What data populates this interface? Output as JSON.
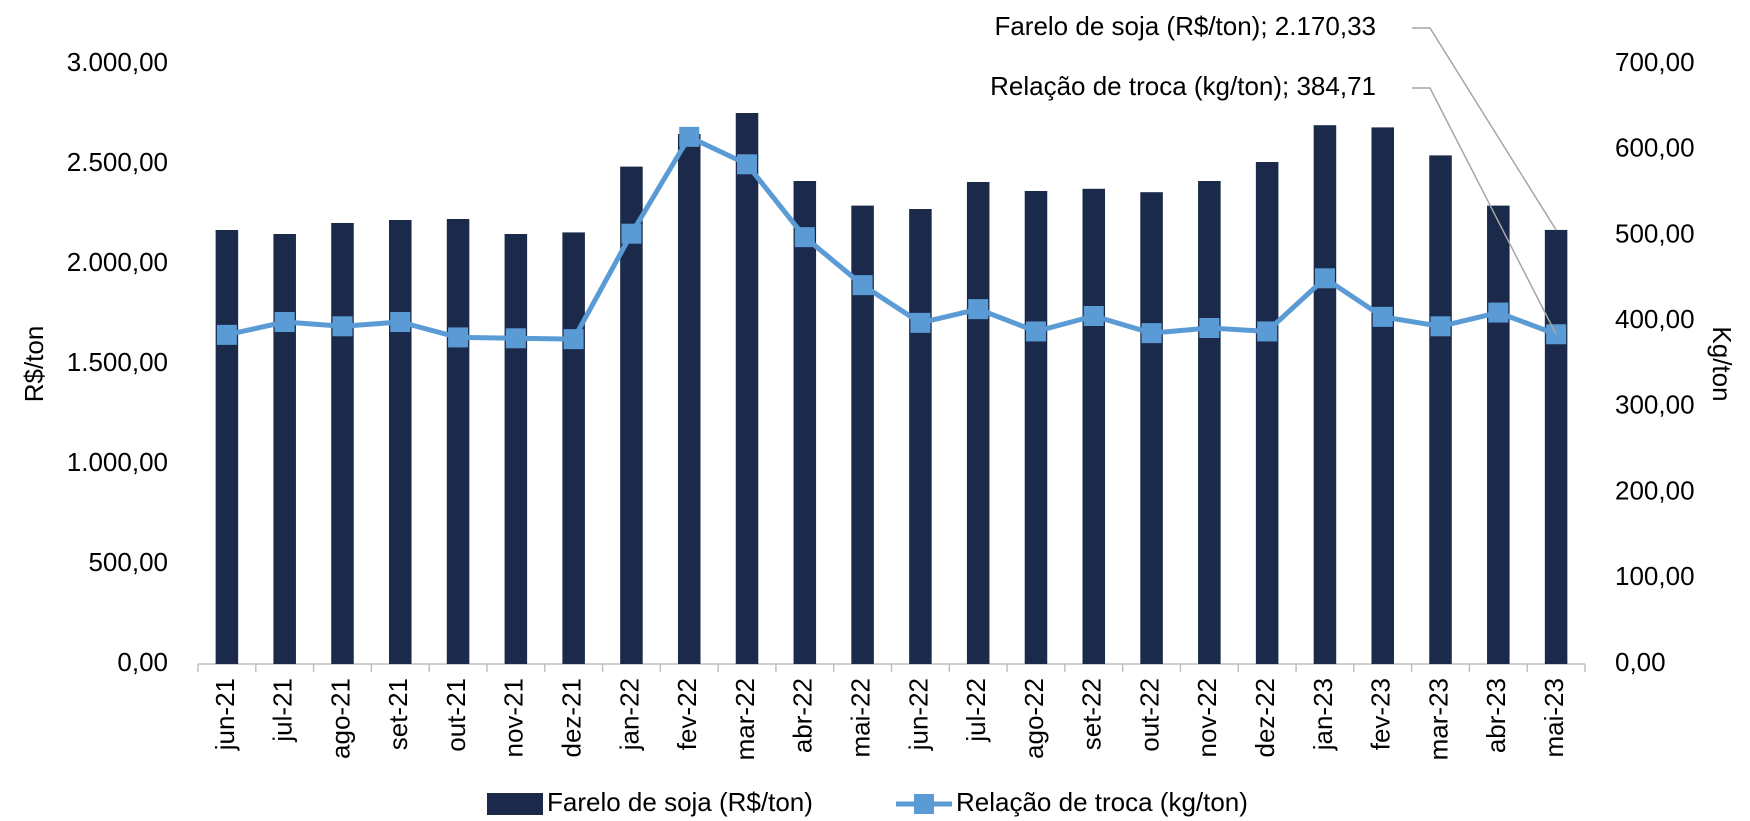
{
  "chart_data": {
    "type": "bar-line",
    "categories": [
      "jun-21",
      "jul-21",
      "ago-21",
      "set-21",
      "out-21",
      "nov-21",
      "dez-21",
      "jan-22",
      "fev-22",
      "mar-22",
      "abr-22",
      "mai-22",
      "jun-22",
      "jul-22",
      "ago-22",
      "set-22",
      "out-22",
      "nov-22",
      "dez-22",
      "jan-23",
      "fev-23",
      "mar-23",
      "abr-23",
      "mai-23"
    ],
    "series": [
      {
        "name": "Farelo de soja (R$/ton)",
        "color": "#1b2a4a",
        "type": "bar",
        "values": [
          2170,
          2150,
          2205,
          2220,
          2225,
          2150,
          2158,
          2487,
          2650,
          2755,
          2415,
          2292,
          2275,
          2410,
          2365,
          2376,
          2359,
          2415,
          2510,
          2694,
          2683,
          2543,
          2292,
          2170.33
        ]
      },
      {
        "name": "Relação de troca (kg/ton)",
        "color": "#5b9bd5",
        "type": "line",
        "axis": "y2",
        "values": [
          384,
          399,
          394,
          399,
          381,
          380,
          379,
          502,
          615,
          583,
          498,
          442,
          398,
          414,
          388,
          406,
          386,
          392,
          388,
          450,
          405,
          394,
          410,
          384.71
        ]
      }
    ],
    "ylabel": "R$/ton",
    "y2label": "Kg/ton",
    "ylim": [
      0,
      3000
    ],
    "yticks": [
      {
        "value": 0,
        "label": "0,00"
      },
      {
        "value": 500,
        "label": "500,00"
      },
      {
        "value": 1000,
        "label": "1.000,00"
      },
      {
        "value": 1500,
        "label": "1.500,00"
      },
      {
        "value": 2000,
        "label": "2.000,00"
      },
      {
        "value": 2500,
        "label": "2.500,00"
      },
      {
        "value": 3000,
        "label": "3.000,00"
      }
    ],
    "y2lim": [
      0,
      700
    ],
    "y2ticks": [
      {
        "value": 0,
        "label": "0,00"
      },
      {
        "value": 100,
        "label": "100,00"
      },
      {
        "value": 200,
        "label": "200,00"
      },
      {
        "value": 300,
        "label": "300,00"
      },
      {
        "value": 400,
        "label": "400,00"
      },
      {
        "value": 500,
        "label": "500,00"
      },
      {
        "value": 600,
        "label": "600,00"
      },
      {
        "value": 700,
        "label": "700,00"
      }
    ],
    "annotations": [
      "Farelo de soja (R$/ton); 2.170,33",
      "Relação de troca (kg/ton); 384,71"
    ],
    "legend": "bottom"
  }
}
